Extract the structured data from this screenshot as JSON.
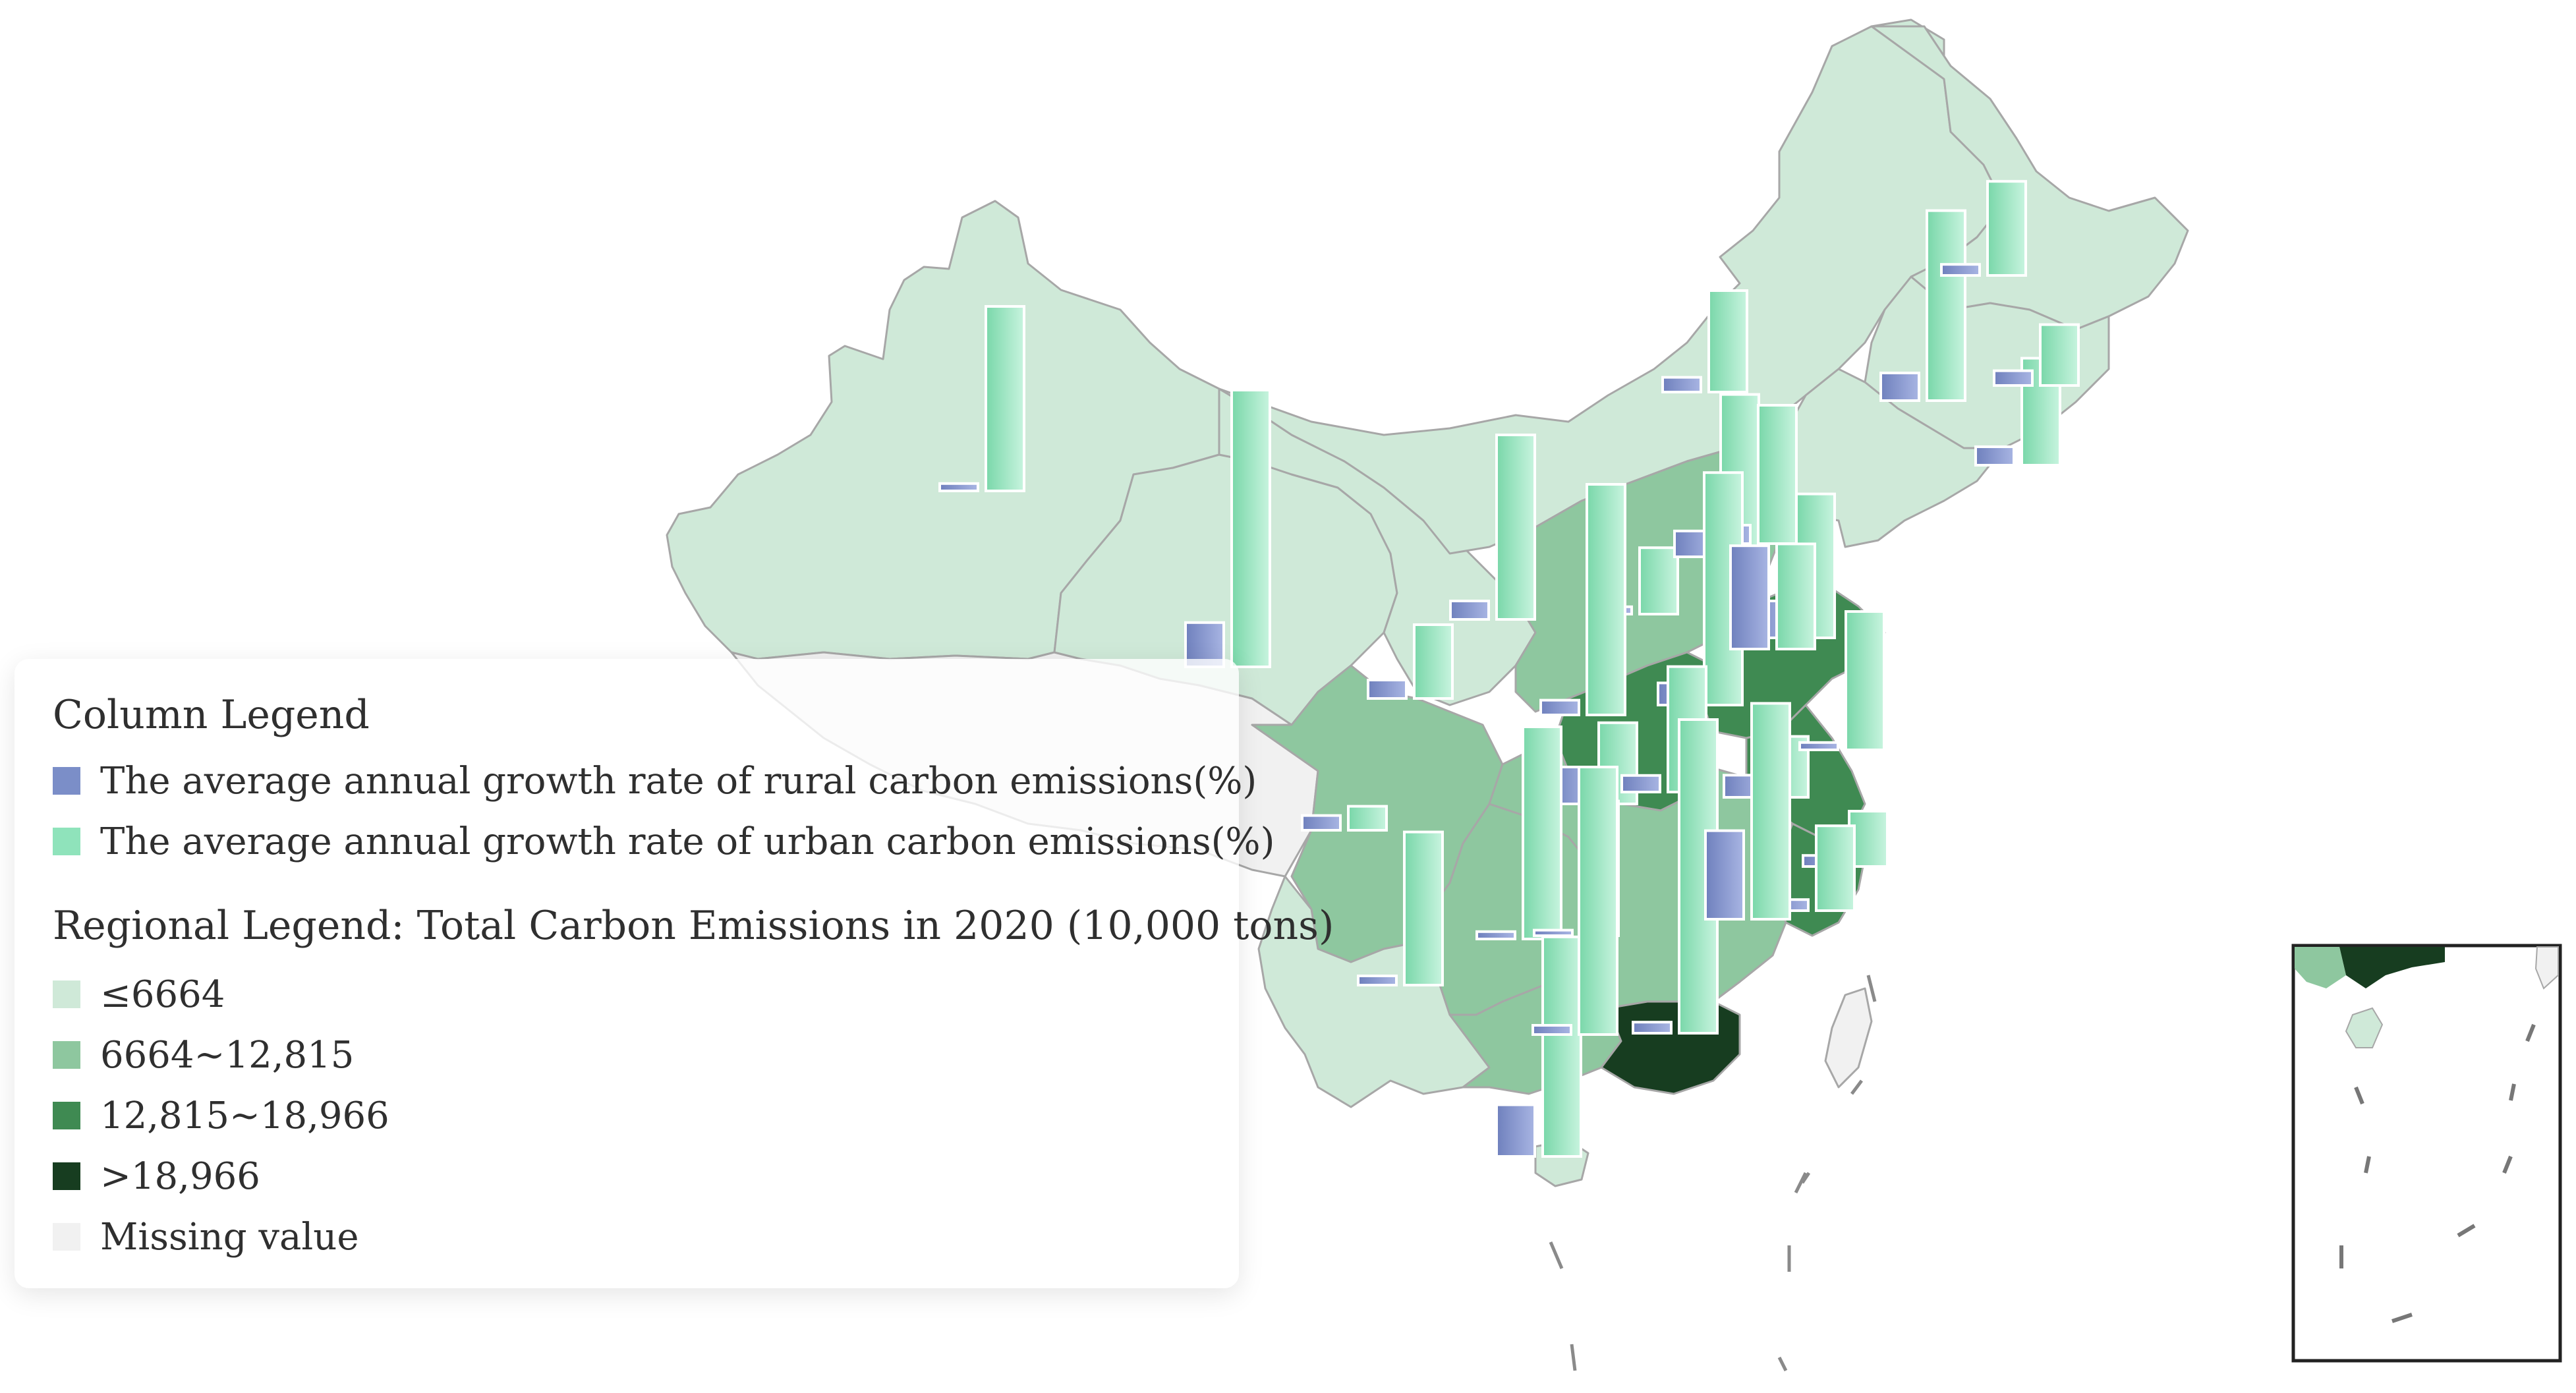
{
  "colors": {
    "level_1": "#cfe9d8",
    "level_2": "#8ec79f",
    "level_3": "#3f8a52",
    "level_4": "#173d20",
    "missing": "#f1f1f1",
    "rural_bar": "#7b8ec8",
    "urban_bar": "#8fe3bb",
    "border": "#a7a7a7"
  },
  "legend": {
    "column_title": "Column Legend",
    "rural_label": "The average annual growth rate of rural carbon emissions(%)",
    "urban_label": "The average annual growth rate of urban carbon emissions(%)",
    "regional_title": "Regional Legend: Total Carbon Emissions in 2020 (10,000 tons)",
    "classes": [
      {
        "label": "≤6664",
        "color": "#cfe9d8"
      },
      {
        "label": "6664~12,815",
        "color": "#8ec79f"
      },
      {
        "label": "12,815~18,966",
        "color": "#3f8a52"
      },
      {
        "label": ">18,966",
        "color": "#173d20"
      },
      {
        "label": "Missing value",
        "color": "#f1f1f1"
      }
    ]
  },
  "regions": [
    {
      "id": "xinjiang",
      "level": 1
    },
    {
      "id": "tibet",
      "level": 0
    },
    {
      "id": "qinghai",
      "level": 1
    },
    {
      "id": "gansu",
      "level": 1
    },
    {
      "id": "inner-mongolia",
      "level": 1
    },
    {
      "id": "heilongjiang",
      "level": 1
    },
    {
      "id": "jilin",
      "level": 1
    },
    {
      "id": "liaoning",
      "level": 1
    },
    {
      "id": "hebei-region",
      "level": 2
    },
    {
      "id": "shandong",
      "level": 3
    },
    {
      "id": "henan",
      "level": 3
    },
    {
      "id": "jiangsu",
      "level": 3
    },
    {
      "id": "zhejiang",
      "level": 3
    },
    {
      "id": "sichuan",
      "level": 2
    },
    {
      "id": "yunnan",
      "level": 1
    },
    {
      "id": "guizhou-chongqing",
      "level": 2
    },
    {
      "id": "central-south",
      "level": 2
    },
    {
      "id": "guangdong",
      "level": 4
    },
    {
      "id": "hainan",
      "level": 1
    },
    {
      "id": "taiwan",
      "level": 0
    }
  ],
  "chart_data": {
    "type": "bar",
    "series": [
      {
        "name": "The average annual growth rate of rural carbon emissions(%)",
        "key": "rural"
      },
      {
        "name": "The average annual growth rate of urban carbon emissions(%)",
        "key": "urban"
      }
    ],
    "columns": [
      {
        "rural": 0.4,
        "urban": 10.0
      },
      {
        "rural": 2.4,
        "urban": 15.0
      },
      {
        "rural": 1.0,
        "urban": 10.0
      },
      {
        "rural": 1.0,
        "urban": 4.0
      },
      {
        "rural": 2.0,
        "urban": 4.4
      },
      {
        "rural": 0.4,
        "urban": 3.6
      },
      {
        "rural": 0.8,
        "urban": 5.5
      },
      {
        "rural": 0.8,
        "urban": 1.3
      },
      {
        "rural": 1.4,
        "urban": 8.8
      },
      {
        "rural": 1.0,
        "urban": 7.5
      },
      {
        "rural": 2.0,
        "urban": 7.8
      },
      {
        "rural": 0.5,
        "urban": 8.3
      },
      {
        "rural": 0.4,
        "urban": 11.5
      },
      {
        "rural": 1.2,
        "urban": 12.6
      },
      {
        "rural": 0.3,
        "urban": 7.3
      },
      {
        "rural": 0.8,
        "urban": 12.5
      },
      {
        "rural": 0.9,
        "urban": 6.8
      },
      {
        "rural": 1.2,
        "urban": 3.3
      },
      {
        "rural": 1.0,
        "urban": 5.8
      },
      {
        "rural": 0.8,
        "urban": 3.3
      },
      {
        "rural": 0.6,
        "urban": 3.0
      },
      {
        "rural": 5.6,
        "urban": 5.7
      },
      {
        "rural": 0.6,
        "urban": 4.6
      },
      {
        "rural": 0.6,
        "urban": 17.0
      },
      {
        "rural": 1.5,
        "urban": 10.3
      },
      {
        "rural": 2.8,
        "urban": 11.9
      },
      {
        "rural": 0.6,
        "urban": 5.1
      },
      {
        "rural": 0.4,
        "urban": 7.5
      },
      {
        "rural": 0.5,
        "urban": 14.5
      },
      {
        "rural": 4.8,
        "urban": 11.7
      }
    ]
  }
}
